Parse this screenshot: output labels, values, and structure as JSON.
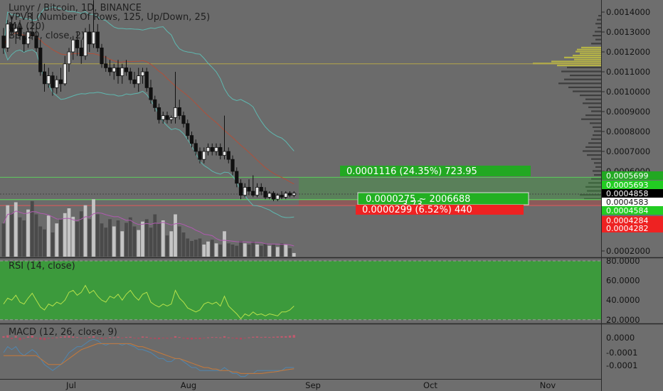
{
  "chart_data": {
    "type": "candlestick",
    "symbol_title": "Lunyr / Bitcoin, 1D, BINANCE",
    "indicators": [
      "VPVR (Number Of Rows, 125, Up/Down, 25)",
      "MA (20)",
      "BB (20, close, 2)"
    ],
    "price_axis": {
      "labels": [
        "0.0014000",
        "0.0013000",
        "0.0012000",
        "0.0011000",
        "0.0010000",
        "0.0009000",
        "0.0008000",
        "0.0007000",
        "0.0006000",
        "0.0002000"
      ],
      "values": [
        0.0014,
        0.0013,
        0.0012,
        0.0011,
        0.001,
        0.0009,
        0.0008,
        0.0007,
        0.0006,
        0.0002
      ]
    },
    "price_tags": [
      {
        "label": "0.0005699",
        "value": 0.0005699,
        "color": "#22a822"
      },
      {
        "label": "0.0005693",
        "value": 0.0005693,
        "color": "#22cc22"
      },
      {
        "label": "0.0004858",
        "value": 0.0004858,
        "color": "#000000"
      },
      {
        "label": "0.0004583",
        "value": 0.0004583,
        "color": "#ffffff"
      },
      {
        "label": "0.0004584",
        "value": 0.0004584,
        "color": "#22cc22"
      },
      {
        "label": "0.0004284",
        "value": 0.0004284,
        "color": "#ee2222"
      },
      {
        "label": "0.0004282",
        "value": 0.0004282,
        "color": "#ee2222"
      }
    ],
    "position_tool": {
      "entry": 0.000458,
      "target": 0.00057,
      "stop": 0.000428,
      "target_label": "0.0001116 (24.35%) 723.95",
      "open_label": "0.0000275 ~ 2006688",
      "ratio_label": "3.73",
      "stop_label": "0.0000299 (6.52%) 440"
    },
    "x_axis": {
      "labels": [
        "Jul",
        "Aug",
        "Sep",
        "Oct",
        "Nov"
      ]
    },
    "candles": [
      [
        0.00128,
        0.00132,
        0.00119,
        0.00122
      ],
      [
        0.00122,
        0.00136,
        0.0012,
        0.00134
      ],
      [
        0.00134,
        0.00138,
        0.00128,
        0.0013
      ],
      [
        0.0013,
        0.00134,
        0.00124,
        0.00132
      ],
      [
        0.00132,
        0.00136,
        0.00126,
        0.00128
      ],
      [
        0.00128,
        0.0013,
        0.0012,
        0.00124
      ],
      [
        0.00124,
        0.00132,
        0.00122,
        0.0013
      ],
      [
        0.0013,
        0.0014,
        0.00126,
        0.00128
      ],
      [
        0.00128,
        0.00134,
        0.0012,
        0.00122
      ],
      [
        0.00122,
        0.00126,
        0.00108,
        0.0011
      ],
      [
        0.0011,
        0.00114,
        0.001,
        0.00104
      ],
      [
        0.00104,
        0.00112,
        0.00102,
        0.00108
      ],
      [
        0.00108,
        0.0011,
        0.00098,
        0.00102
      ],
      [
        0.00102,
        0.00108,
        0.00099,
        0.00106
      ],
      [
        0.00106,
        0.00112,
        0.001,
        0.00104
      ],
      [
        0.00104,
        0.00118,
        0.00103,
        0.00114
      ],
      [
        0.00114,
        0.00122,
        0.0011,
        0.0012
      ],
      [
        0.0012,
        0.00128,
        0.00116,
        0.00126
      ],
      [
        0.00126,
        0.0013,
        0.00118,
        0.00122
      ],
      [
        0.00122,
        0.00126,
        0.00114,
        0.00118
      ],
      [
        0.00118,
        0.00132,
        0.00116,
        0.0013
      ],
      [
        0.0013,
        0.00134,
        0.0012,
        0.00124
      ],
      [
        0.00124,
        0.00146,
        0.00122,
        0.0013
      ],
      [
        0.0013,
        0.00134,
        0.0012,
        0.00122
      ],
      [
        0.00122,
        0.00124,
        0.00112,
        0.00114
      ],
      [
        0.00114,
        0.00118,
        0.0011,
        0.00112
      ],
      [
        0.00112,
        0.00116,
        0.00108,
        0.0011
      ],
      [
        0.0011,
        0.00114,
        0.00106,
        0.00112
      ],
      [
        0.00112,
        0.00116,
        0.00104,
        0.00108
      ],
      [
        0.00108,
        0.00114,
        0.00104,
        0.00112
      ],
      [
        0.00112,
        0.00116,
        0.00108,
        0.0011
      ],
      [
        0.0011,
        0.00112,
        0.00104,
        0.00106
      ],
      [
        0.00106,
        0.0011,
        0.00102,
        0.00104
      ],
      [
        0.00104,
        0.00112,
        0.001,
        0.00108
      ],
      [
        0.00108,
        0.00112,
        0.00104,
        0.0011
      ],
      [
        0.0011,
        0.00112,
        0.001,
        0.00102
      ],
      [
        0.00102,
        0.00106,
        0.00094,
        0.00096
      ],
      [
        0.00096,
        0.00098,
        0.0009,
        0.00092
      ],
      [
        0.00092,
        0.00094,
        0.00084,
        0.00086
      ],
      [
        0.00086,
        0.0009,
        0.00084,
        0.00088
      ],
      [
        0.00088,
        0.0009,
        0.00084,
        0.00086
      ],
      [
        0.00086,
        0.00088,
        0.00084,
        0.00087
      ],
      [
        0.00087,
        0.0011,
        0.00084,
        0.00092
      ],
      [
        0.00092,
        0.00096,
        0.00086,
        0.00088
      ],
      [
        0.00088,
        0.0009,
        0.00082,
        0.00084
      ],
      [
        0.00084,
        0.00086,
        0.00076,
        0.00078
      ],
      [
        0.00078,
        0.0008,
        0.00072,
        0.00074
      ],
      [
        0.00074,
        0.00076,
        0.00068,
        0.0007
      ],
      [
        0.0007,
        0.00072,
        0.00064,
        0.00066
      ],
      [
        0.00066,
        0.00072,
        0.00064,
        0.0007
      ],
      [
        0.0007,
        0.00074,
        0.00068,
        0.00072
      ],
      [
        0.00072,
        0.00074,
        0.00068,
        0.0007
      ],
      [
        0.0007,
        0.00074,
        0.00068,
        0.00072
      ],
      [
        0.00072,
        0.00074,
        0.00066,
        0.00068
      ],
      [
        0.00068,
        0.00088,
        0.00066,
        0.0007
      ],
      [
        0.0007,
        0.00072,
        0.00064,
        0.00066
      ],
      [
        0.00066,
        0.00068,
        0.00058,
        0.0006
      ],
      [
        0.0006,
        0.00062,
        0.00052,
        0.00054
      ],
      [
        0.00054,
        0.00056,
        0.00046,
        0.00048
      ],
      [
        0.00048,
        0.00054,
        0.00047,
        0.00052
      ],
      [
        0.00052,
        0.00056,
        0.00048,
        0.0005
      ],
      [
        0.0005,
        0.00058,
        0.00047,
        0.00048
      ],
      [
        0.00048,
        0.00054,
        0.00047,
        0.00052
      ],
      [
        0.00052,
        0.00054,
        0.00048,
        0.0005
      ],
      [
        0.0005,
        0.00052,
        0.00046,
        0.00047
      ],
      [
        0.00047,
        0.0005,
        0.00046,
        0.00049
      ],
      [
        0.00049,
        0.0005,
        0.00045,
        0.00046
      ],
      [
        0.00046,
        0.00049,
        0.00045,
        0.00048
      ],
      [
        0.00048,
        0.0005,
        0.00046,
        0.00047
      ],
      [
        0.00047,
        0.0005,
        0.00046,
        0.00049
      ],
      [
        0.00049,
        0.0005,
        0.00047,
        0.00048
      ],
      [
        0.00048,
        0.0005,
        0.00047,
        0.00049
      ]
    ],
    "volume": [
      0.55,
      0.85,
      0.72,
      0.9,
      0.65,
      0.6,
      0.78,
      0.92,
      0.7,
      0.5,
      0.45,
      0.68,
      0.4,
      0.55,
      0.62,
      0.72,
      0.8,
      0.66,
      0.58,
      0.75,
      0.85,
      0.62,
      0.95,
      0.7,
      0.55,
      0.48,
      0.62,
      0.5,
      0.6,
      0.42,
      0.56,
      0.65,
      0.5,
      0.44,
      0.58,
      0.62,
      0.48,
      0.7,
      0.55,
      0.6,
      0.35,
      0.42,
      0.7,
      0.5,
      0.4,
      0.3,
      0.26,
      0.28,
      0.3,
      0.2,
      0.25,
      0.28,
      0.22,
      0.2,
      0.42,
      0.22,
      0.2,
      0.18,
      0.26,
      0.22,
      0.2,
      0.25,
      0.2,
      0.18,
      0.22,
      0.18,
      0.2,
      0.16,
      0.22,
      0.2,
      0.14,
      0.06
    ],
    "vpvr": [
      {
        "p": 0.00138,
        "w": 4
      },
      {
        "p": 0.00136,
        "w": 6
      },
      {
        "p": 0.00134,
        "w": 8
      },
      {
        "p": 0.00132,
        "w": 5
      },
      {
        "p": 0.0013,
        "w": 9
      },
      {
        "p": 0.00128,
        "w": 12
      },
      {
        "p": 0.00126,
        "w": 8
      },
      {
        "p": 0.00124,
        "w": 14
      },
      {
        "p": 0.00122,
        "w": 28
      },
      {
        "p": 0.00121,
        "w": 34
      },
      {
        "p": 0.0012,
        "w": 36
      },
      {
        "p": 0.00119,
        "w": 30
      },
      {
        "p": 0.00118,
        "w": 40
      },
      {
        "p": 0.00117,
        "w": 52
      },
      {
        "p": 0.00116,
        "w": 38
      },
      {
        "p": 0.00115,
        "w": 70
      },
      {
        "p": 0.00114,
        "w": 96
      },
      {
        "p": 0.00113,
        "w": 62
      },
      {
        "p": 0.00112,
        "w": 48
      },
      {
        "p": 0.0011,
        "w": 56
      },
      {
        "p": 0.00108,
        "w": 44
      },
      {
        "p": 0.00106,
        "w": 52
      },
      {
        "p": 0.00104,
        "w": 60
      },
      {
        "p": 0.00102,
        "w": 46
      },
      {
        "p": 0.001,
        "w": 40
      },
      {
        "p": 0.00098,
        "w": 30
      },
      {
        "p": 0.00096,
        "w": 22
      },
      {
        "p": 0.00094,
        "w": 26
      },
      {
        "p": 0.00092,
        "w": 18
      },
      {
        "p": 0.0009,
        "w": 14
      },
      {
        "p": 0.00088,
        "w": 22
      },
      {
        "p": 0.00086,
        "w": 28
      },
      {
        "p": 0.00084,
        "w": 16
      },
      {
        "p": 0.00082,
        "w": 12
      },
      {
        "p": 0.0008,
        "w": 10
      },
      {
        "p": 0.00078,
        "w": 12
      },
      {
        "p": 0.00076,
        "w": 14
      },
      {
        "p": 0.00074,
        "w": 18
      },
      {
        "p": 0.00072,
        "w": 22
      },
      {
        "p": 0.0007,
        "w": 26
      },
      {
        "p": 0.00068,
        "w": 20
      },
      {
        "p": 0.00066,
        "w": 14
      },
      {
        "p": 0.00064,
        "w": 10
      },
      {
        "p": 0.00062,
        "w": 8
      },
      {
        "p": 0.0006,
        "w": 12
      },
      {
        "p": 0.00058,
        "w": 10
      },
      {
        "p": 0.00056,
        "w": 14
      },
      {
        "p": 0.00054,
        "w": 18
      },
      {
        "p": 0.00052,
        "w": 22
      },
      {
        "p": 0.0005,
        "w": 20
      },
      {
        "p": 0.00048,
        "w": 30
      },
      {
        "p": 0.00046,
        "w": 24
      }
    ],
    "rsi": {
      "title": "RSI (14, close)",
      "axis_labels": [
        "80.0000",
        "60.0000",
        "40.0000",
        "20.0000"
      ],
      "axis_values": [
        80,
        60,
        40,
        20
      ],
      "values": [
        36,
        42,
        40,
        45,
        38,
        36,
        42,
        47,
        40,
        33,
        30,
        36,
        34,
        38,
        36,
        40,
        48,
        50,
        45,
        48,
        55,
        47,
        50,
        44,
        40,
        38,
        44,
        42,
        46,
        40,
        46,
        50,
        44,
        40,
        46,
        48,
        38,
        35,
        33,
        36,
        34,
        36,
        50,
        42,
        38,
        32,
        30,
        28,
        30,
        36,
        38,
        36,
        38,
        34,
        44,
        34,
        30,
        26,
        21,
        26,
        24,
        28,
        25,
        26,
        24,
        26,
        25,
        24,
        28,
        28,
        30,
        34
      ]
    },
    "macd": {
      "title": "MACD (12, 26, close, 9)",
      "axis_labels": [
        "0.0000",
        "-0.0001",
        "-0.0001"
      ],
      "axis_values": [
        0,
        -5e-05,
        -0.0001
      ],
      "histogram": [
        5e-06,
        8e-06,
        -4e-06,
        6e-06,
        -8e-06,
        -3e-06,
        4e-06,
        7e-06,
        -2e-06,
        -6e-06,
        -8e-06,
        -3e-06,
        -2e-06,
        1e-06,
        3e-06,
        5e-06,
        6e-06,
        4e-06,
        2e-06,
        -2e-06,
        -1e-06,
        3e-06,
        5e-06,
        -1e-06,
        -4e-06,
        -3e-06,
        2e-06,
        1e-06,
        3e-06,
        -2e-06,
        2e-06,
        3e-06,
        -1e-06,
        -3e-06,
        4e-06,
        3e-06,
        -3e-06,
        -4e-06,
        -5e-06,
        -2e-06,
        -3e-06,
        -2e-06,
        5e-06,
        2e-06,
        -3e-06,
        -5e-06,
        -6e-06,
        -4e-06,
        -5e-06,
        -1e-06,
        1e-06,
        2e-06,
        2e-06,
        1e-06,
        5e-06,
        1e-06,
        -2e-06,
        -4e-06,
        -6e-06,
        -1e-06,
        1e-06,
        3e-06,
        4e-06,
        2e-06,
        3e-06,
        2e-06,
        3e-06,
        4e-06,
        5e-06,
        5e-06,
        7e-06,
        9e-06
      ],
      "macd_line": [
        -5e-05,
        -3e-05,
        -4e-05,
        -3e-05,
        -5e-05,
        -6e-05,
        -5e-05,
        -4e-05,
        -5e-05,
        -7e-05,
        -9e-05,
        -0.0001,
        -0.00011,
        -0.0001,
        -9e-05,
        -7e-05,
        -5e-05,
        -4e-05,
        -3e-05,
        -3e-05,
        -2e-05,
        -1e-05,
        -5e-06,
        -1e-05,
        -2e-05,
        -2.5e-05,
        -2e-05,
        -2e-05,
        -2e-05,
        -2.5e-05,
        -2e-05,
        -2.5e-05,
        -3e-05,
        -4e-05,
        -4e-05,
        -4.5e-05,
        -5e-05,
        -6e-05,
        -7e-05,
        -7e-05,
        -8e-05,
        -8e-05,
        -7e-05,
        -7e-05,
        -8e-05,
        -9e-05,
        -0.0001,
        -0.0001,
        -0.00011,
        -0.00011,
        -0.00011,
        -0.00011,
        -0.00011,
        -0.00011,
        -0.0001,
        -0.00011,
        -0.00012,
        -0.00012,
        -0.00013,
        -0.00013,
        -0.00012,
        -0.00012,
        -0.00011,
        -0.00011,
        -0.00011,
        -0.00011,
        -0.00011,
        -0.00011,
        -0.00011,
        -0.0001,
        -0.0001,
        -0.0001
      ],
      "signal_line": [
        -6e-05,
        -6e-05,
        -6e-05,
        -6e-05,
        -6e-05,
        -6e-05,
        -6e-05,
        -6e-05,
        -6e-05,
        -7e-05,
        -8e-05,
        -9e-05,
        -9e-05,
        -9e-05,
        -9e-05,
        -8e-05,
        -7e-05,
        -6e-05,
        -5e-05,
        -4e-05,
        -3.5e-05,
        -3e-05,
        -2.5e-05,
        -2e-05,
        -2e-05,
        -2e-05,
        -2e-05,
        -2e-05,
        -2e-05,
        -2e-05,
        -2e-05,
        -2e-05,
        -2.5e-05,
        -3e-05,
        -3e-05,
        -3.5e-05,
        -4e-05,
        -4.5e-05,
        -5e-05,
        -5.5e-05,
        -6e-05,
        -6.5e-05,
        -7e-05,
        -7e-05,
        -7.5e-05,
        -8e-05,
        -8.5e-05,
        -9e-05,
        -9.5e-05,
        -0.0001,
        -0.0001,
        -0.000105,
        -0.000105,
        -0.00011,
        -0.00011,
        -0.00011,
        -0.000115,
        -0.000115,
        -0.00012,
        -0.00012,
        -0.00012,
        -0.00012,
        -0.00012,
        -0.00012,
        -0.000118,
        -0.000116,
        -0.000115,
        -0.000113,
        -0.00011,
        -0.000108,
        -0.000106,
        -0.000104
      ]
    }
  }
}
